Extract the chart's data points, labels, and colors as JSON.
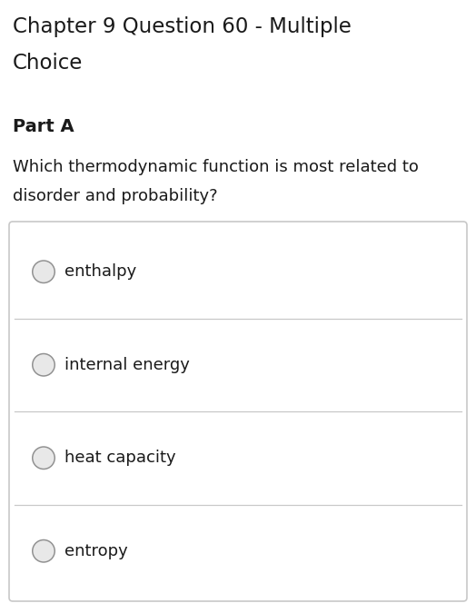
{
  "title_line1": "Chapter 9 Question 60 - Multiple",
  "title_line2": "Choice",
  "part_label": "Part A",
  "question_line1": "Which thermodynamic function is most related to",
  "question_line2": "disorder and probability?",
  "choices": [
    "enthalpy",
    "internal energy",
    "heat capacity",
    "entropy"
  ],
  "bg_color": "#ffffff",
  "box_border_color": "#c8c8c8",
  "radio_fill_light": "#e8e8e8",
  "radio_fill_dark": "#b0b0b0",
  "radio_border_color": "#909090",
  "text_color": "#1a1a1a",
  "title_fontsize": 16.5,
  "part_fontsize": 14,
  "question_fontsize": 13,
  "choice_fontsize": 13,
  "fig_width": 5.24,
  "fig_height": 6.75,
  "dpi": 100
}
